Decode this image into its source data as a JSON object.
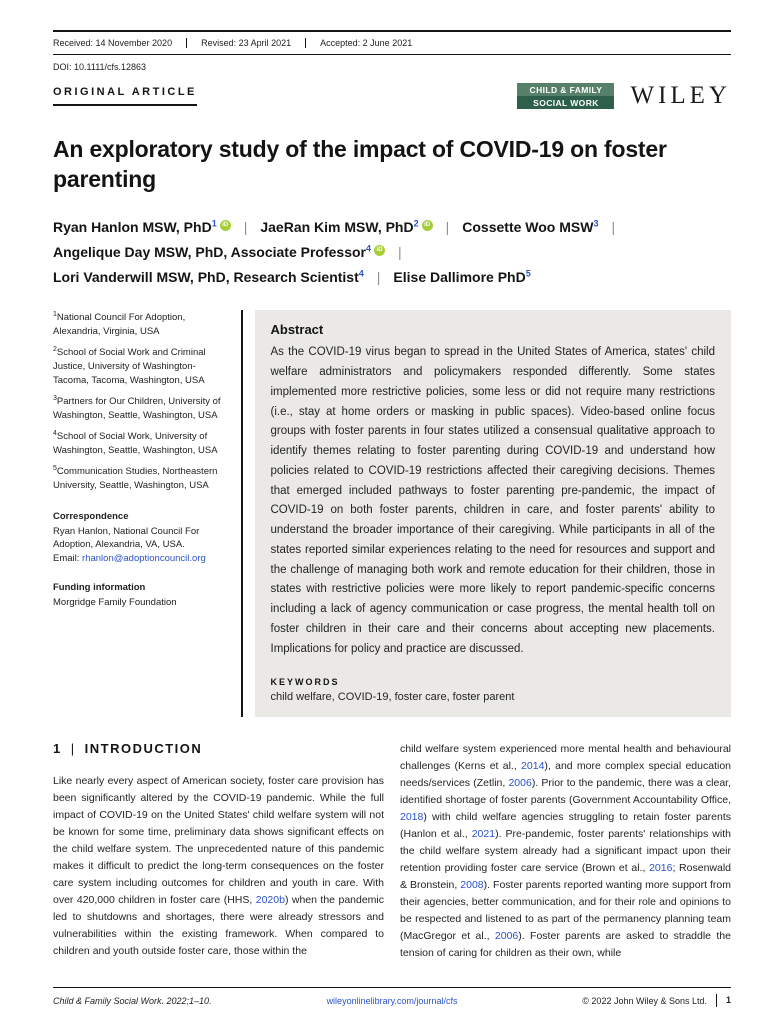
{
  "header": {
    "received": "Received: 14 November 2020",
    "revised": "Revised: 23 April 2021",
    "accepted": "Accepted: 2 June 2021",
    "doi": "DOI: 10.1111/cfs.12863",
    "article_type": "ORIGINAL ARTICLE",
    "journal_badge_line1": "CHILD & FAMILY",
    "journal_badge_line2": "SOCIAL WORK",
    "publisher_logo": "WILEY"
  },
  "title": "An exploratory study of the impact of COVID-19 on foster parenting",
  "authors": [
    {
      "name": "Ryan Hanlon MSW, PhD",
      "sup": "1",
      "orcid": true
    },
    {
      "name": "JaeRan Kim MSW, PhD",
      "sup": "2",
      "orcid": true
    },
    {
      "name": "Cossette Woo MSW",
      "sup": "3",
      "orcid": false,
      "break_after": true
    },
    {
      "name": "Angelique Day MSW, PhD, Associate Professor",
      "sup": "4",
      "orcid": true,
      "break_after": true
    },
    {
      "name": "Lori Vanderwill MSW, PhD, Research Scientist",
      "sup": "4",
      "orcid": false
    },
    {
      "name": "Elise Dallimore PhD",
      "sup": "5",
      "orcid": false
    }
  ],
  "affiliations": [
    {
      "sup": "1",
      "text": "National Council For Adoption, Alexandria, Virginia, USA"
    },
    {
      "sup": "2",
      "text": "School of Social Work and Criminal Justice, University of Washington-Tacoma, Tacoma, Washington, USA"
    },
    {
      "sup": "3",
      "text": "Partners for Our Children, University of Washington, Seattle, Washington, USA"
    },
    {
      "sup": "4",
      "text": "School of Social Work, University of Washington, Seattle, Washington, USA"
    },
    {
      "sup": "5",
      "text": "Communication Studies, Northeastern University, Seattle, Washington, USA"
    }
  ],
  "correspondence": {
    "label": "Correspondence",
    "text": "Ryan Hanlon, National Council For Adoption, Alexandria, VA, USA.",
    "email_label": "Email: ",
    "email": "rhanlon@adoptioncouncil.org"
  },
  "funding": {
    "label": "Funding information",
    "text": "Morgridge Family Foundation"
  },
  "abstract": {
    "heading": "Abstract",
    "text": "As the COVID-19 virus began to spread in the United States of America, states' child welfare administrators and policymakers responded differently. Some states implemented more restrictive policies, some less or did not require many restrictions (i.e., stay at home orders or masking in public spaces). Video-based online focus groups with foster parents in four states utilized a consensual qualitative approach to identify themes relating to foster parenting during COVID-19 and understand how policies related to COVID-19 restrictions affected their caregiving decisions. Themes that emerged included pathways to foster parenting pre-pandemic, the impact of COVID-19 on both foster parents, children in care, and foster parents' ability to understand the broader importance of their caregiving. While participants in all of the states reported similar experiences relating to the need for resources and support and the challenge of managing both work and remote education for their children, those in states with restrictive policies were more likely to report pandemic-specific concerns including a lack of agency communication or case progress, the mental health toll on foster children in their care and their concerns about accepting new placements. Implications for policy and practice are discussed.",
    "keywords_label": "KEYWORDS",
    "keywords": "child welfare, COVID-19, foster care, foster parent"
  },
  "body": {
    "section": {
      "number": "1",
      "separator": "|",
      "label": "INTRODUCTION"
    },
    "col1_segments": [
      {
        "t": "Like nearly every aspect of American society, foster care provision has been significantly altered by the COVID-19 pandemic. While the full impact of COVID-19 on the United States' child welfare system will not be known for some time, preliminary data shows significant effects on the child welfare system. The unprecedented nature of this pandemic makes it difficult to predict the long-term consequences on the foster care system including outcomes for children and youth in care. With over 420,000 children in foster care (HHS, "
      },
      {
        "t": "2020b",
        "link": true
      },
      {
        "t": ") when the pandemic led to shutdowns and shortages, there were already stressors and vulnerabilities within the existing framework. When compared to children and youth outside foster care, those within the"
      }
    ],
    "col2_segments": [
      {
        "t": "child welfare system experienced more mental health and behavioural challenges (Kerns et al., "
      },
      {
        "t": "2014",
        "link": true
      },
      {
        "t": "), and more complex special education needs/services (Zetlin, "
      },
      {
        "t": "2006",
        "link": true
      },
      {
        "t": "). Prior to the pandemic, there was a clear, identified shortage of foster parents (Government Accountability Office, "
      },
      {
        "t": "2018",
        "link": true
      },
      {
        "t": ") with child welfare agencies struggling to retain foster parents (Hanlon et al., "
      },
      {
        "t": "2021",
        "link": true
      },
      {
        "t": "). Pre-pandemic, foster parents' relationships with the child welfare system already had a significant impact upon their retention providing foster care service (Brown et al., "
      },
      {
        "t": "2016",
        "link": true
      },
      {
        "t": "; Rosenwald & Bronstein, "
      },
      {
        "t": "2008",
        "link": true
      },
      {
        "t": "). Foster parents reported wanting more support from their agencies, better communication, and for their role and opinions to be respected and listened to as part of the permanency planning team (MacGregor et al., "
      },
      {
        "t": "2006",
        "link": true
      },
      {
        "t": "). Foster parents are asked to straddle the tension of caring for children as their own, while"
      }
    ]
  },
  "footer": {
    "left": "Child & Family Social Work. 2022;1–10.",
    "center_link": "wileyonlinelibrary.com/journal/cfs",
    "right": "© 2022 John Wiley & Sons Ltd.",
    "page_number": "1"
  },
  "colors": {
    "link_blue": "#2b52cc",
    "orcid_green": "#a6ce39",
    "badge_green_top": "#57806a",
    "badge_green_bottom": "#2e5f4b",
    "abstract_background": "#eae9e6"
  }
}
